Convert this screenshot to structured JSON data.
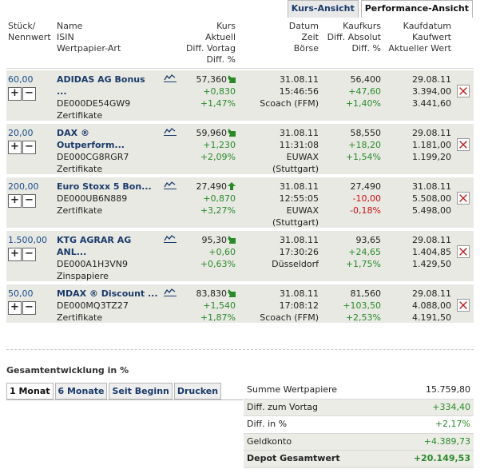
{
  "view_tabs": [
    "Kurs-Ansicht",
    "Performance-Ansicht"
  ],
  "header": {
    "stk": [
      "Stück/",
      "Nennwert"
    ],
    "name": [
      "Name",
      "ISIN",
      "Wertpapier-Art"
    ],
    "kurs": [
      "Kurs",
      "Aktuell",
      "Diff. Vortag",
      "Diff. %"
    ],
    "datum": [
      "Datum",
      "Zeit",
      "Börse"
    ],
    "kaufkurs": [
      "Kaufkurs",
      "Diff. Absolut",
      "Diff. %"
    ],
    "kaufdatum": [
      "Kaufdatum",
      "Kaufwert",
      "Aktueller Wert"
    ]
  },
  "rows": [
    {
      "qty": "60,00",
      "name1": "ADIDAS AG Bonus",
      "name2": "...",
      "isin": "DE000DE54GW9",
      "type": "Zertifikate",
      "kurs": "57,360",
      "arrow": "down",
      "diff": "+0,830",
      "diffp": "+1,47%",
      "date": "31.08.11",
      "time": "15:46:56",
      "exch": [
        "Scoach (FFM)"
      ],
      "kk": "56,400",
      "kkd": "+47,60",
      "kkp": "+1,40%",
      "kkneg": false,
      "kdate": "29.08.11",
      "kwert": "3.394,00",
      "awert": "3.441,60",
      "h": 63
    },
    {
      "qty": "20,00",
      "name1": "DAX ®",
      "name2": "Outperform...",
      "isin": "DE000CG8RGR7",
      "type": "Zertifikate",
      "kurs": "59,960",
      "arrow": "down",
      "diff": "+1,230",
      "diffp": "+2,09%",
      "date": "31.08.11",
      "time": "11:31:08",
      "exch": [
        "EUWAX",
        "(Stuttgart)"
      ],
      "kk": "58,550",
      "kkd": "+18,20",
      "kkp": "+1,54%",
      "kkneg": false,
      "kdate": "29.08.11",
      "kwert": "1.181,00",
      "awert": "1.199,20",
      "h": 63
    },
    {
      "qty": "200,00",
      "name1": "Euro Stoxx 5 Bon...",
      "name2": "",
      "isin": "DE000UB6N889",
      "type": "Zertifikate",
      "kurs": "27,490",
      "arrow": "up",
      "diff": "+0,870",
      "diffp": "+3,27%",
      "date": "31.08.11",
      "time": "12:55:05",
      "exch": [
        "EUWAX",
        "(Stuttgart)"
      ],
      "kk": "27,490",
      "kkd": "-10,00",
      "kkp": "-0,18%",
      "kkneg": true,
      "kdate": "31.08.11",
      "kwert": "5.508,00",
      "awert": "5.498,00",
      "h": 63
    },
    {
      "qty": "1.500,00",
      "name1": "KTG AGRAR AG",
      "name2": "ANL...",
      "isin": "DE000A1H3VN9",
      "type": "Zinspapiere",
      "kurs": "95,30",
      "arrow": "down",
      "diff": "+0,60",
      "diffp": "+0,63%",
      "date": "31.08.11",
      "time": "17:30:26",
      "exch": [
        "Düsseldorf"
      ],
      "kk": "93,65",
      "kkd": "+24,65",
      "kkp": "+1,75%",
      "kkneg": false,
      "kdate": "29.08.11",
      "kwert": "1.404,85",
      "awert": "1.429,50",
      "h": 63
    },
    {
      "qty": "50,00",
      "name1": "MDAX ® Discount ...",
      "name2": "",
      "isin": "DE000MQ3TZ27",
      "type": "Zertifikate",
      "kurs": "83,830",
      "arrow": "down",
      "diff": "+1,540",
      "diffp": "+1,87%",
      "date": "31.08.11",
      "time": "17:08:12",
      "exch": [
        "Scoach (FFM)"
      ],
      "kk": "81,560",
      "kkd": "+103,50",
      "kkp": "+2,53%",
      "kkneg": false,
      "kdate": "29.08.11",
      "kwert": "4.088,00",
      "awert": "4.191,50",
      "h": 48
    }
  ],
  "gesamt": {
    "title": "Gesamtentwicklung in %",
    "tabs": [
      "1 Monat",
      "6 Monate",
      "Seit Beginn",
      "Drucken"
    ]
  },
  "summary": [
    {
      "label": "Summe Wertpapiere",
      "value": "15.759,80",
      "pos": false
    },
    {
      "label": "Diff. zum Vortag",
      "value": "+334,40",
      "pos": true
    },
    {
      "label": "Diff. in %",
      "value": "+2,17%",
      "pos": true
    },
    {
      "label": "Geldkonto",
      "value": "+4.389,73",
      "pos": true
    },
    {
      "label": "Depot Gesamtwert",
      "value": "+20.149,53",
      "pos": true
    }
  ],
  "colors": {
    "positive": "#2a8a2a",
    "negative": "#d01010",
    "link": "#1a3a6a",
    "row_bg": "#e9e9e4"
  }
}
